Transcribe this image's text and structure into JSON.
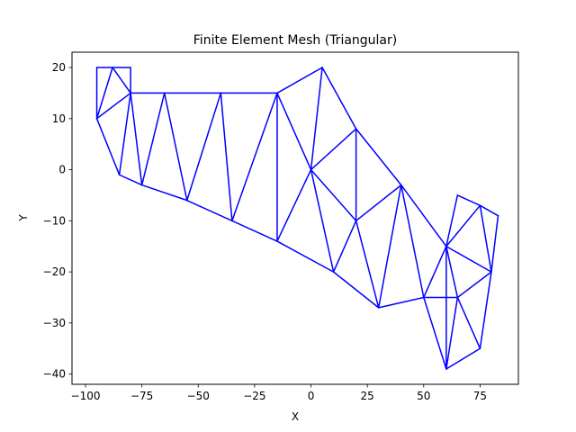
{
  "chart_data": {
    "type": "line",
    "title": "Finite Element Mesh (Triangular)",
    "xlabel": "X",
    "ylabel": "Y",
    "xlim": [
      -106,
      92
    ],
    "ylim": [
      -42,
      23
    ],
    "xticks": [
      -100,
      -75,
      -50,
      -25,
      0,
      25,
      50,
      75
    ],
    "yticks": [
      -40,
      -30,
      -20,
      -10,
      0,
      10,
      20
    ],
    "grid": false,
    "edge_color": "#0000ff",
    "nodes": [
      [
        -95,
        20
      ],
      [
        -88,
        20
      ],
      [
        -80,
        20
      ],
      [
        -95,
        10
      ],
      [
        -80,
        15
      ],
      [
        -85,
        -1
      ],
      [
        -75,
        -3
      ],
      [
        -65,
        15
      ],
      [
        -55,
        -6
      ],
      [
        -40,
        15
      ],
      [
        -35,
        -10
      ],
      [
        -15,
        15
      ],
      [
        -15,
        -14
      ],
      [
        5,
        20
      ],
      [
        0,
        0
      ],
      [
        20,
        8
      ],
      [
        20,
        -10
      ],
      [
        10,
        -20
      ],
      [
        40,
        -3
      ],
      [
        30,
        -27
      ],
      [
        50,
        -25
      ],
      [
        60,
        -15
      ],
      [
        65,
        -5
      ],
      [
        75,
        -7
      ],
      [
        83,
        -9
      ],
      [
        80,
        -20
      ],
      [
        65,
        -25
      ],
      [
        75,
        -35
      ],
      [
        60,
        -39
      ]
    ],
    "edges": [
      [
        0,
        1
      ],
      [
        1,
        2
      ],
      [
        2,
        4
      ],
      [
        0,
        3
      ],
      [
        1,
        3
      ],
      [
        1,
        4
      ],
      [
        3,
        4
      ],
      [
        3,
        5
      ],
      [
        4,
        5
      ],
      [
        4,
        6
      ],
      [
        5,
        6
      ],
      [
        4,
        7
      ],
      [
        6,
        7
      ],
      [
        6,
        8
      ],
      [
        7,
        8
      ],
      [
        7,
        9
      ],
      [
        8,
        9
      ],
      [
        8,
        10
      ],
      [
        9,
        10
      ],
      [
        9,
        11
      ],
      [
        10,
        11
      ],
      [
        10,
        12
      ],
      [
        11,
        12
      ],
      [
        11,
        13
      ],
      [
        11,
        14
      ],
      [
        12,
        14
      ],
      [
        13,
        14
      ],
      [
        13,
        15
      ],
      [
        14,
        15
      ],
      [
        14,
        16
      ],
      [
        15,
        16
      ],
      [
        14,
        17
      ],
      [
        16,
        17
      ],
      [
        12,
        17
      ],
      [
        15,
        18
      ],
      [
        16,
        18
      ],
      [
        16,
        19
      ],
      [
        17,
        19
      ],
      [
        18,
        19
      ],
      [
        18,
        20
      ],
      [
        19,
        20
      ],
      [
        18,
        21
      ],
      [
        20,
        21
      ],
      [
        21,
        22
      ],
      [
        22,
        23
      ],
      [
        21,
        23
      ],
      [
        23,
        24
      ],
      [
        24,
        25
      ],
      [
        23,
        25
      ],
      [
        21,
        25
      ],
      [
        21,
        26
      ],
      [
        20,
        26
      ],
      [
        25,
        26
      ],
      [
        26,
        27
      ],
      [
        25,
        27
      ],
      [
        27,
        28
      ],
      [
        26,
        28
      ],
      [
        20,
        28
      ],
      [
        21,
        28
      ]
    ]
  }
}
